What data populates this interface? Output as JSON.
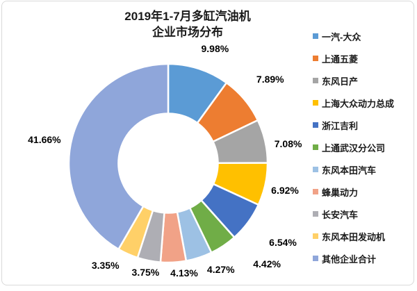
{
  "window": {
    "background": "#ffffff",
    "border_color": "#d9d9d9"
  },
  "title": {
    "line1": "2019年1-7月多缸汽油机",
    "line2": "企业市场分布"
  },
  "chart_data": {
    "type": "pie",
    "subtype": "donut",
    "title": "2019年1-7月多缸汽油机 企业市场分布",
    "legend_position": "right",
    "start_angle_deg": 0,
    "direction": "clockwise",
    "hole_ratio": 0.5,
    "categories": [
      "一汽-大众",
      "上通五菱",
      "东风日产",
      "上海大众动力总成",
      "浙江吉利",
      "上通武汉分公司",
      "东风本田汽车",
      "蜂巢动力",
      "长安汽车",
      "东风本田发动机",
      "其他企业合计"
    ],
    "values": [
      9.98,
      7.89,
      7.08,
      6.92,
      6.54,
      4.42,
      4.27,
      4.13,
      3.75,
      3.35,
      41.66
    ],
    "labels": [
      "9.98%",
      "7.89%",
      "7.08%",
      "6.92%",
      "6.54%",
      "4.42%",
      "4.27%",
      "4.13%",
      "3.75%",
      "3.35%",
      "41.66%"
    ],
    "colors": [
      "#5B9BD5",
      "#ED7D31",
      "#A5A5A5",
      "#FFC000",
      "#4472C4",
      "#70AD47",
      "#9DC1E4",
      "#F1A287",
      "#AEAEB4",
      "#FFD068",
      "#8FA6DA"
    ]
  }
}
